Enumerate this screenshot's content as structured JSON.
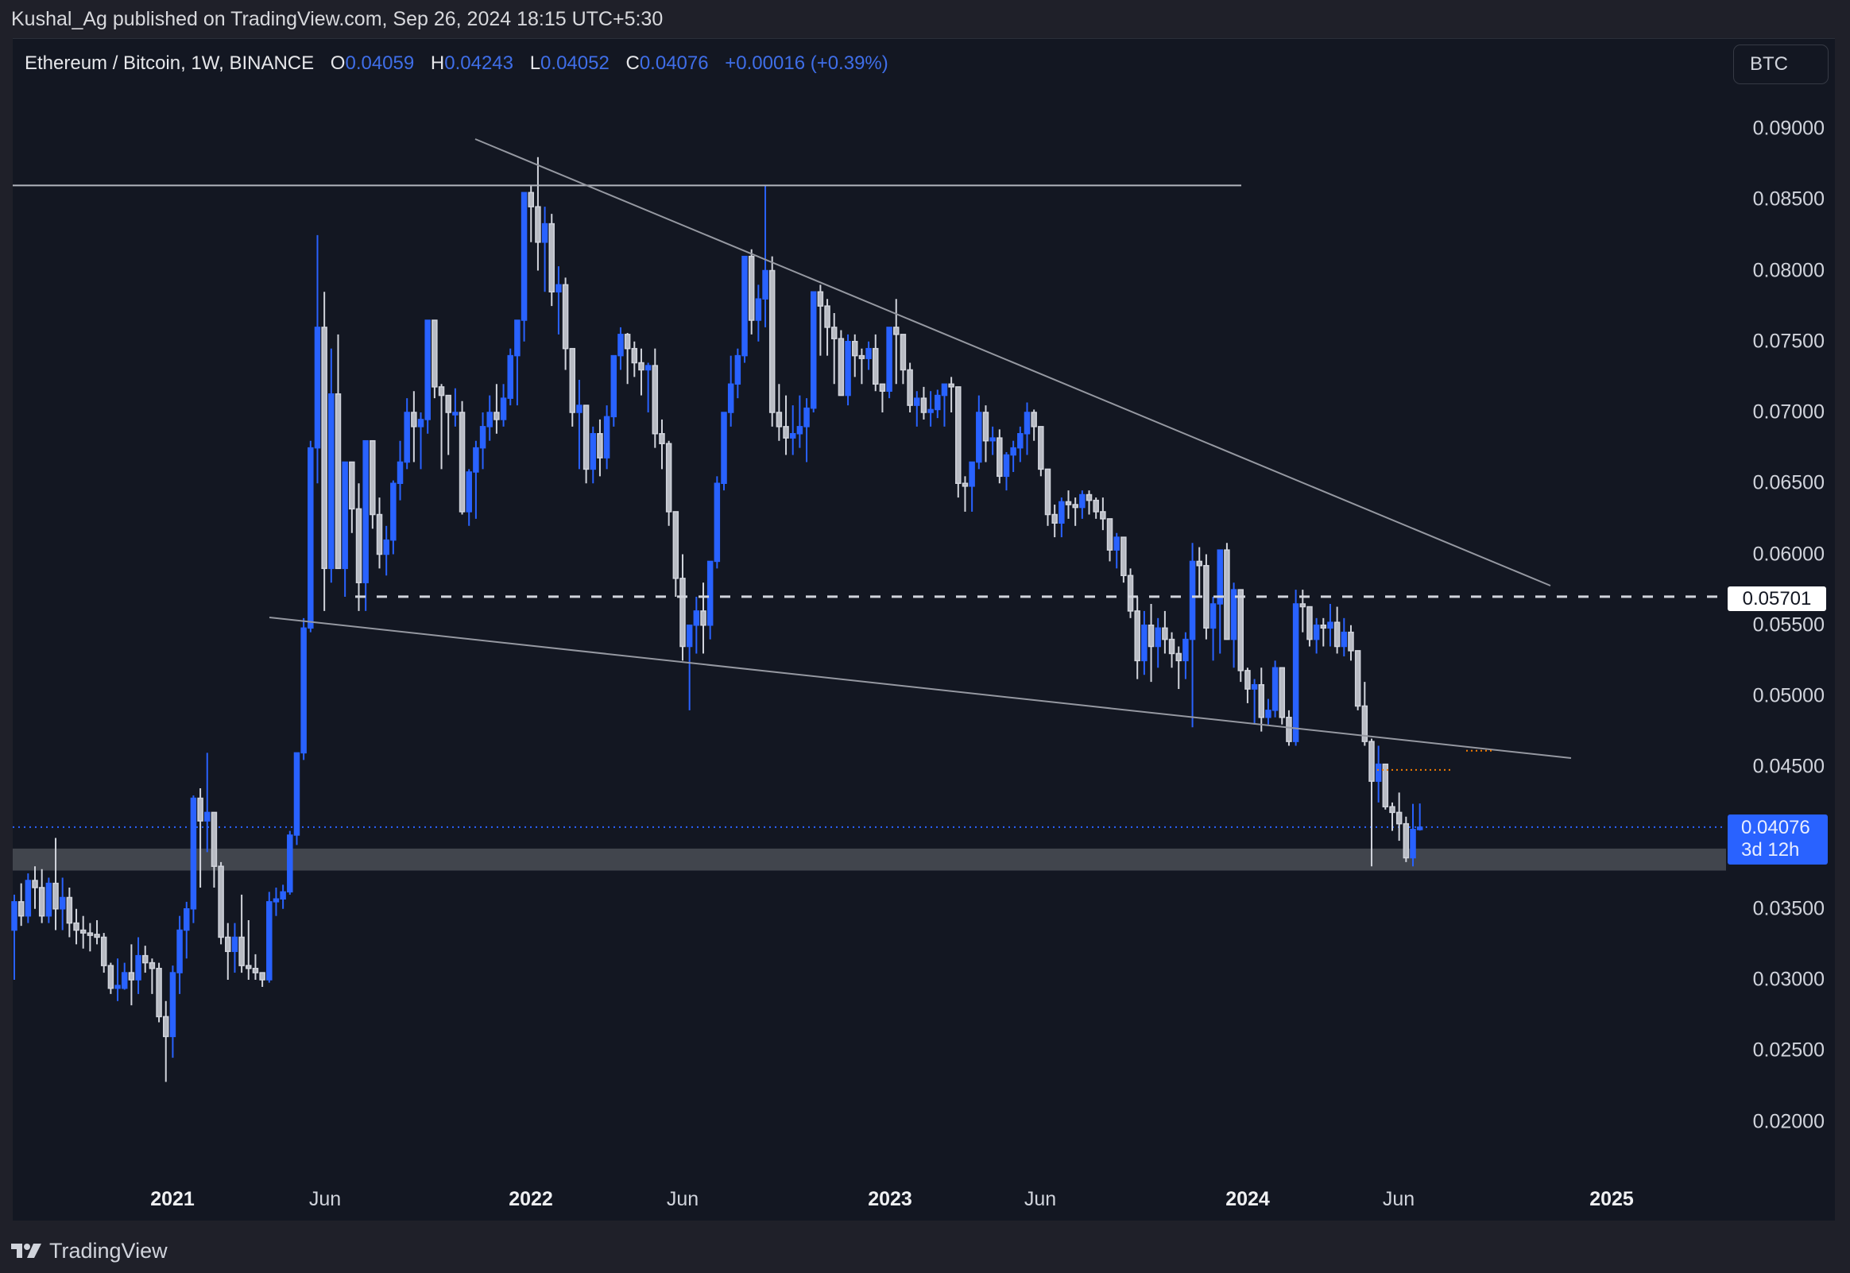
{
  "header": {
    "publisher": "Kushal_Ag published on TradingView.com, Sep 26, 2024 18:15 UTC+5:30"
  },
  "legend": {
    "symbol": "Ethereum / Bitcoin, 1W, BINANCE",
    "o_label": "O",
    "o": "0.04059",
    "h_label": "H",
    "h": "0.04243",
    "l_label": "L",
    "l": "0.04052",
    "c_label": "C",
    "c": "0.04076",
    "change": "+0.00016 (+0.39%)"
  },
  "currency_button": "BTC",
  "price_tags": {
    "level": "0.05701",
    "last_price": "0.04076",
    "countdown": "3d 12h"
  },
  "footer": {
    "brand": "TradingView"
  },
  "colors": {
    "background": "#131722",
    "up_candle": "#2962ff",
    "down_candle": "#d1d4dc",
    "trendline": "#9598a1",
    "support_zone": "#4a4d55",
    "orange_marker": "#f57c00"
  },
  "chart_data": {
    "type": "candlestick",
    "title": "Ethereum / Bitcoin, 1W, BINANCE",
    "xlabel": "",
    "ylabel": "BTC",
    "ylim": [
      0.0175,
      0.0925
    ],
    "y_ticks": [
      "0.09000",
      "0.08500",
      "0.08000",
      "0.07500",
      "0.07000",
      "0.06500",
      "0.06000",
      "0.05500",
      "0.05000",
      "0.04500",
      "0.03500",
      "0.03000",
      "0.02500",
      "0.02000"
    ],
    "x_ticks": [
      {
        "label": "2021",
        "year": true,
        "x": 217
      },
      {
        "label": "Jun",
        "year": false,
        "x": 409
      },
      {
        "label": "2022",
        "year": true,
        "x": 668
      },
      {
        "label": "Jun",
        "year": false,
        "x": 859
      },
      {
        "label": "2023",
        "year": true,
        "x": 1120
      },
      {
        "label": "Jun",
        "year": false,
        "x": 1309
      },
      {
        "label": "2024",
        "year": true,
        "x": 1570
      },
      {
        "label": "Jun",
        "year": false,
        "x": 1760
      },
      {
        "label": "2025",
        "year": true,
        "x": 2028
      }
    ],
    "grid": false,
    "first_candle_x": 18,
    "week_spacing_px": 8.67,
    "candles_ohlc": [
      [
        0.0335,
        0.036,
        0.03,
        0.0355
      ],
      [
        0.0355,
        0.0368,
        0.0338,
        0.0345
      ],
      [
        0.0345,
        0.0375,
        0.034,
        0.037
      ],
      [
        0.037,
        0.038,
        0.035,
        0.0365
      ],
      [
        0.0365,
        0.0378,
        0.034,
        0.0345
      ],
      [
        0.0345,
        0.0372,
        0.034,
        0.0368
      ],
      [
        0.0368,
        0.04,
        0.0335,
        0.035
      ],
      [
        0.035,
        0.0372,
        0.0335,
        0.0358
      ],
      [
        0.0358,
        0.0365,
        0.033,
        0.034
      ],
      [
        0.034,
        0.035,
        0.0325,
        0.0335
      ],
      [
        0.0335,
        0.0345,
        0.0322,
        0.0333
      ],
      [
        0.0333,
        0.034,
        0.032,
        0.0332
      ],
      [
        0.0332,
        0.0342,
        0.0325,
        0.033
      ],
      [
        0.033,
        0.0333,
        0.0305,
        0.031
      ],
      [
        0.031,
        0.0312,
        0.029,
        0.0294
      ],
      [
        0.0294,
        0.0315,
        0.0285,
        0.0296
      ],
      [
        0.0294,
        0.0312,
        0.0293,
        0.0305
      ],
      [
        0.0305,
        0.0325,
        0.0282,
        0.03
      ],
      [
        0.03,
        0.033,
        0.029,
        0.0317
      ],
      [
        0.0317,
        0.0324,
        0.0305,
        0.0312
      ],
      [
        0.0312,
        0.0315,
        0.029,
        0.0308
      ],
      [
        0.0308,
        0.0312,
        0.027,
        0.0274
      ],
      [
        0.0274,
        0.0285,
        0.0228,
        0.026
      ],
      [
        0.026,
        0.031,
        0.0245,
        0.0305
      ],
      [
        0.0305,
        0.0345,
        0.029,
        0.0335
      ],
      [
        0.0335,
        0.0355,
        0.0315,
        0.035
      ],
      [
        0.035,
        0.043,
        0.034,
        0.0428
      ],
      [
        0.0428,
        0.0435,
        0.0365,
        0.0412
      ],
      [
        0.0412,
        0.046,
        0.039,
        0.0418
      ],
      [
        0.0418,
        0.0415,
        0.0365,
        0.038
      ],
      [
        0.038,
        0.0383,
        0.0325,
        0.033
      ],
      [
        0.033,
        0.034,
        0.03,
        0.032
      ],
      [
        0.032,
        0.034,
        0.0305,
        0.033
      ],
      [
        0.033,
        0.036,
        0.0305,
        0.031
      ],
      [
        0.031,
        0.0342,
        0.03,
        0.0308
      ],
      [
        0.0308,
        0.0318,
        0.03,
        0.0305
      ],
      [
        0.0305,
        0.03,
        0.0295,
        0.03
      ],
      [
        0.03,
        0.0362,
        0.0298,
        0.0355
      ],
      [
        0.0355,
        0.0365,
        0.0345,
        0.0357
      ],
      [
        0.0357,
        0.0367,
        0.035,
        0.0362
      ],
      [
        0.0362,
        0.0405,
        0.036,
        0.0402
      ],
      [
        0.0402,
        0.0452,
        0.0395,
        0.046
      ],
      [
        0.046,
        0.0555,
        0.0455,
        0.0548
      ],
      [
        0.0548,
        0.068,
        0.0545,
        0.0675
      ],
      [
        0.0675,
        0.0825,
        0.065,
        0.076
      ],
      [
        0.076,
        0.0785,
        0.056,
        0.059
      ],
      [
        0.059,
        0.0745,
        0.058,
        0.0713
      ],
      [
        0.0713,
        0.0755,
        0.059,
        0.059
      ],
      [
        0.059,
        0.0665,
        0.057,
        0.0665
      ],
      [
        0.0665,
        0.066,
        0.0615,
        0.0632
      ],
      [
        0.0632,
        0.065,
        0.056,
        0.058
      ],
      [
        0.058,
        0.068,
        0.056,
        0.068
      ],
      [
        0.068,
        0.068,
        0.0618,
        0.0628
      ],
      [
        0.0628,
        0.064,
        0.059,
        0.06
      ],
      [
        0.06,
        0.062,
        0.0585,
        0.061
      ],
      [
        0.061,
        0.0652,
        0.06,
        0.065
      ],
      [
        0.065,
        0.068,
        0.0638,
        0.0665
      ],
      [
        0.0665,
        0.071,
        0.066,
        0.07
      ],
      [
        0.07,
        0.0715,
        0.0665,
        0.069
      ],
      [
        0.069,
        0.07,
        0.066,
        0.0695
      ],
      [
        0.0695,
        0.076,
        0.0685,
        0.0765
      ],
      [
        0.0765,
        0.0765,
        0.071,
        0.0718
      ],
      [
        0.0718,
        0.072,
        0.066,
        0.0712
      ],
      [
        0.0712,
        0.0705,
        0.067,
        0.07
      ],
      [
        0.07,
        0.0717,
        0.069,
        0.07
      ],
      [
        0.07,
        0.0708,
        0.0628,
        0.063
      ],
      [
        0.063,
        0.066,
        0.062,
        0.0658
      ],
      [
        0.0658,
        0.068,
        0.0625,
        0.0675
      ],
      [
        0.0675,
        0.07,
        0.066,
        0.069
      ],
      [
        0.069,
        0.0712,
        0.068,
        0.07
      ],
      [
        0.07,
        0.072,
        0.0685,
        0.0695
      ],
      [
        0.0695,
        0.072,
        0.069,
        0.071
      ],
      [
        0.071,
        0.0745,
        0.0705,
        0.074
      ],
      [
        0.074,
        0.075,
        0.0705,
        0.0765
      ],
      [
        0.0765,
        0.081,
        0.075,
        0.0855
      ],
      [
        0.0855,
        0.086,
        0.082,
        0.0845
      ],
      [
        0.0845,
        0.088,
        0.08,
        0.082
      ],
      [
        0.082,
        0.0845,
        0.0785,
        0.0833
      ],
      [
        0.0833,
        0.084,
        0.0775,
        0.0785
      ],
      [
        0.0785,
        0.0803,
        0.0755,
        0.079
      ],
      [
        0.079,
        0.0795,
        0.073,
        0.0745
      ],
      [
        0.0745,
        0.074,
        0.069,
        0.07
      ],
      [
        0.07,
        0.0723,
        0.066,
        0.0705
      ],
      [
        0.0705,
        0.07,
        0.065,
        0.066
      ],
      [
        0.066,
        0.069,
        0.065,
        0.0685
      ],
      [
        0.0685,
        0.0695,
        0.0655,
        0.0668
      ],
      [
        0.0668,
        0.0705,
        0.066,
        0.0697
      ],
      [
        0.0697,
        0.074,
        0.069,
        0.074
      ],
      [
        0.074,
        0.076,
        0.073,
        0.0755
      ],
      [
        0.0755,
        0.0756,
        0.072,
        0.0745
      ],
      [
        0.0745,
        0.075,
        0.0725,
        0.0735
      ],
      [
        0.0735,
        0.0745,
        0.0712,
        0.073
      ],
      [
        0.073,
        0.0735,
        0.07,
        0.0733
      ],
      [
        0.0733,
        0.0745,
        0.0675,
        0.0685
      ],
      [
        0.0685,
        0.0695,
        0.066,
        0.0678
      ],
      [
        0.0678,
        0.068,
        0.062,
        0.063
      ],
      [
        0.063,
        0.0625,
        0.057,
        0.0583
      ],
      [
        0.0583,
        0.06,
        0.0525,
        0.0535
      ],
      [
        0.0535,
        0.055,
        0.049,
        0.055
      ],
      [
        0.055,
        0.057,
        0.053,
        0.056
      ],
      [
        0.056,
        0.058,
        0.053,
        0.055
      ],
      [
        0.055,
        0.059,
        0.054,
        0.0595
      ],
      [
        0.0595,
        0.0655,
        0.059,
        0.065
      ],
      [
        0.065,
        0.07,
        0.0645,
        0.07
      ],
      [
        0.07,
        0.074,
        0.069,
        0.072
      ],
      [
        0.072,
        0.0745,
        0.071,
        0.074
      ],
      [
        0.074,
        0.0785,
        0.0735,
        0.081
      ],
      [
        0.081,
        0.0815,
        0.0755,
        0.0765
      ],
      [
        0.0765,
        0.079,
        0.075,
        0.078
      ],
      [
        0.078,
        0.086,
        0.076,
        0.08
      ],
      [
        0.08,
        0.081,
        0.069,
        0.07
      ],
      [
        0.07,
        0.072,
        0.068,
        0.069
      ],
      [
        0.069,
        0.0712,
        0.067,
        0.0682
      ],
      [
        0.0682,
        0.0705,
        0.067,
        0.0685
      ],
      [
        0.0685,
        0.0712,
        0.0675,
        0.069
      ],
      [
        0.069,
        0.071,
        0.0665,
        0.0703
      ],
      [
        0.0703,
        0.0745,
        0.07,
        0.0785
      ],
      [
        0.0785,
        0.079,
        0.074,
        0.0775
      ],
      [
        0.0775,
        0.078,
        0.074,
        0.076
      ],
      [
        0.076,
        0.077,
        0.072,
        0.0752
      ],
      [
        0.0752,
        0.0758,
        0.0712,
        0.0712
      ],
      [
        0.0712,
        0.0755,
        0.0705,
        0.075
      ],
      [
        0.075,
        0.0755,
        0.0725,
        0.074
      ],
      [
        0.074,
        0.0745,
        0.072,
        0.0738
      ],
      [
        0.0738,
        0.075,
        0.073,
        0.0745
      ],
      [
        0.0745,
        0.0755,
        0.0715,
        0.072
      ],
      [
        0.072,
        0.0715,
        0.07,
        0.0715
      ],
      [
        0.0715,
        0.076,
        0.071,
        0.076
      ],
      [
        0.076,
        0.078,
        0.072,
        0.0755
      ],
      [
        0.0755,
        0.075,
        0.072,
        0.073
      ],
      [
        0.073,
        0.0735,
        0.07,
        0.0705
      ],
      [
        0.0705,
        0.0715,
        0.069,
        0.071
      ],
      [
        0.071,
        0.0718,
        0.0695,
        0.07
      ],
      [
        0.07,
        0.0715,
        0.069,
        0.0702
      ],
      [
        0.0702,
        0.0716,
        0.0696,
        0.0712
      ],
      [
        0.0712,
        0.072,
        0.069,
        0.072
      ],
      [
        0.072,
        0.0725,
        0.07,
        0.0718
      ],
      [
        0.0718,
        0.0705,
        0.064,
        0.065
      ],
      [
        0.065,
        0.0655,
        0.063,
        0.0648
      ],
      [
        0.0648,
        0.0665,
        0.063,
        0.0665
      ],
      [
        0.0665,
        0.0712,
        0.066,
        0.07
      ],
      [
        0.07,
        0.0705,
        0.0665,
        0.068
      ],
      [
        0.068,
        0.069,
        0.067,
        0.0682
      ],
      [
        0.0682,
        0.0688,
        0.065,
        0.0655
      ],
      [
        0.0655,
        0.0672,
        0.0645,
        0.067
      ],
      [
        0.067,
        0.068,
        0.0658,
        0.0675
      ],
      [
        0.0675,
        0.069,
        0.0665,
        0.0685
      ],
      [
        0.0685,
        0.0707,
        0.067,
        0.07
      ],
      [
        0.07,
        0.0702,
        0.068,
        0.069
      ],
      [
        0.069,
        0.0685,
        0.0655,
        0.066
      ],
      [
        0.066,
        0.065,
        0.062,
        0.0628
      ],
      [
        0.0628,
        0.0635,
        0.0612,
        0.0622
      ],
      [
        0.0622,
        0.064,
        0.0612,
        0.0637
      ],
      [
        0.0637,
        0.0645,
        0.0625,
        0.0635
      ],
      [
        0.0635,
        0.064,
        0.062,
        0.0633
      ],
      [
        0.0633,
        0.0645,
        0.0625,
        0.0642
      ],
      [
        0.0642,
        0.0645,
        0.0628,
        0.0638
      ],
      [
        0.0638,
        0.064,
        0.0625,
        0.063
      ],
      [
        0.063,
        0.064,
        0.0617,
        0.0625
      ],
      [
        0.0625,
        0.0618,
        0.0595,
        0.0603
      ],
      [
        0.0603,
        0.0615,
        0.059,
        0.0612
      ],
      [
        0.0612,
        0.061,
        0.058,
        0.0585
      ],
      [
        0.0585,
        0.059,
        0.0555,
        0.056
      ],
      [
        0.056,
        0.057,
        0.0512,
        0.0525
      ],
      [
        0.0525,
        0.056,
        0.0515,
        0.055
      ],
      [
        0.055,
        0.0565,
        0.051,
        0.0535
      ],
      [
        0.0535,
        0.0555,
        0.052,
        0.0548
      ],
      [
        0.0548,
        0.056,
        0.053,
        0.054
      ],
      [
        0.054,
        0.0545,
        0.052,
        0.053
      ],
      [
        0.053,
        0.0535,
        0.0505,
        0.0525
      ],
      [
        0.0525,
        0.0545,
        0.0512,
        0.054
      ],
      [
        0.054,
        0.0608,
        0.0478,
        0.0595
      ],
      [
        0.0595,
        0.0605,
        0.057,
        0.0592
      ],
      [
        0.0592,
        0.06,
        0.054,
        0.0548
      ],
      [
        0.0548,
        0.057,
        0.0525,
        0.0565
      ],
      [
        0.0565,
        0.06,
        0.053,
        0.0603
      ],
      [
        0.0603,
        0.0608,
        0.054,
        0.054
      ],
      [
        0.054,
        0.058,
        0.052,
        0.0575
      ],
      [
        0.0575,
        0.057,
        0.051,
        0.0518
      ],
      [
        0.0518,
        0.052,
        0.0495,
        0.0505
      ],
      [
        0.0505,
        0.0512,
        0.048,
        0.0508
      ],
      [
        0.0508,
        0.052,
        0.0475,
        0.0485
      ],
      [
        0.0485,
        0.0498,
        0.048,
        0.049
      ],
      [
        0.049,
        0.0525,
        0.0485,
        0.052
      ],
      [
        0.052,
        0.0515,
        0.048,
        0.0485
      ],
      [
        0.0485,
        0.049,
        0.0465,
        0.0468
      ],
      [
        0.0468,
        0.0575,
        0.0465,
        0.0565
      ],
      [
        0.0565,
        0.0575,
        0.0545,
        0.0563
      ],
      [
        0.0563,
        0.056,
        0.0535,
        0.054
      ],
      [
        0.054,
        0.0555,
        0.053,
        0.055
      ],
      [
        0.055,
        0.0555,
        0.0535,
        0.0548
      ],
      [
        0.0548,
        0.0565,
        0.0535,
        0.0552
      ],
      [
        0.0552,
        0.0563,
        0.053,
        0.0535
      ],
      [
        0.0535,
        0.0555,
        0.0528,
        0.0545
      ],
      [
        0.0545,
        0.055,
        0.0525,
        0.0532
      ],
      [
        0.0532,
        0.0525,
        0.049,
        0.0493
      ],
      [
        0.0493,
        0.051,
        0.0465,
        0.0468
      ],
      [
        0.0468,
        0.047,
        0.038,
        0.044
      ],
      [
        0.044,
        0.0465,
        0.0425,
        0.0452
      ],
      [
        0.0452,
        0.0448,
        0.042,
        0.0422
      ],
      [
        0.0422,
        0.0425,
        0.0405,
        0.0418
      ],
      [
        0.0418,
        0.0432,
        0.0398,
        0.041
      ],
      [
        0.041,
        0.0415,
        0.0383,
        0.0386
      ],
      [
        0.0386,
        0.0424,
        0.038,
        0.0406
      ],
      [
        0.04059,
        0.04243,
        0.04052,
        0.04076
      ]
    ],
    "annotations": [
      {
        "type": "horizontal_line",
        "price": 0.086,
        "label": "resistance"
      },
      {
        "type": "trendline",
        "from": [
          598,
          175
        ],
        "to": [
          1951,
          737
        ],
        "label": "descending upper trendline"
      },
      {
        "type": "trendline",
        "from": [
          339,
          777
        ],
        "to": [
          1977,
          954
        ],
        "label": "descending lower trendline"
      },
      {
        "type": "dashed_horizontal",
        "price": 0.05701,
        "label": "0.05701"
      },
      {
        "type": "support_zone",
        "from_price": 0.03925,
        "to_price": 0.0377
      },
      {
        "type": "dotted_line",
        "color": "orange",
        "price": 0.0448
      },
      {
        "type": "dotted_line",
        "color": "orange",
        "price": 0.04615
      }
    ],
    "last_price": 0.04076
  }
}
